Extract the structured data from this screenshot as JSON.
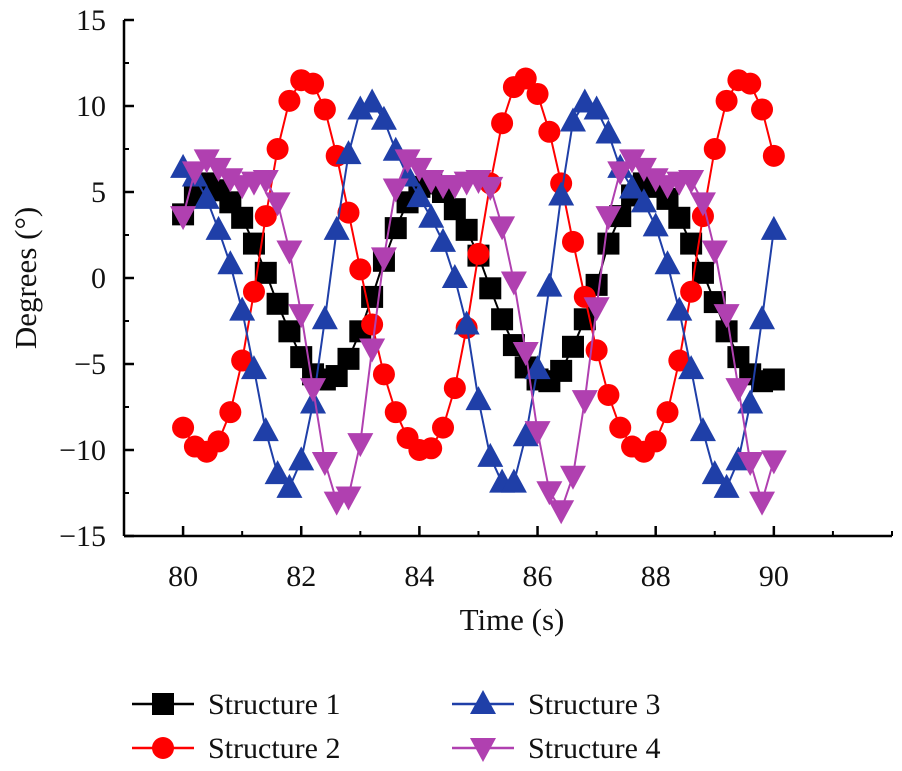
{
  "chart_data": {
    "type": "line",
    "title": "",
    "xlabel": "Time (s)",
    "ylabel": "Degrees (°)",
    "xlim": [
      79,
      92
    ],
    "ylim": [
      -15,
      15
    ],
    "xticks": [
      80,
      82,
      84,
      86,
      88,
      90
    ],
    "yticks": [
      15,
      10,
      5,
      0,
      -5,
      -10,
      -15
    ],
    "ytick_labels": [
      "15",
      "10",
      "5",
      "0",
      "−5",
      "−10",
      "−15"
    ],
    "xtick_labels": [
      "80",
      "82",
      "84",
      "86",
      "88",
      "90"
    ],
    "legend_position": "bottom",
    "series": [
      {
        "name": "Structure 1",
        "color": "#000000",
        "marker": "square",
        "x": [
          80.0,
          80.2,
          80.4,
          80.6,
          80.8,
          81.0,
          81.2,
          81.4,
          81.6,
          81.8,
          82.0,
          82.2,
          82.4,
          82.6,
          82.8,
          83.0,
          83.2,
          83.4,
          83.6,
          83.8,
          84.0,
          84.2,
          84.4,
          84.6,
          84.8,
          85.0,
          85.2,
          85.4,
          85.6,
          85.8,
          86.0,
          86.2,
          86.4,
          86.6,
          86.8,
          87.0,
          87.2,
          87.4,
          87.6,
          87.8,
          88.0,
          88.2,
          88.4,
          88.6,
          88.8,
          89.0,
          89.2,
          89.4,
          89.6,
          89.8,
          90.0
        ],
        "y": [
          3.7,
          4.8,
          5.5,
          5.1,
          4.4,
          3.5,
          2.0,
          0.3,
          -1.5,
          -3.1,
          -4.6,
          -5.6,
          -5.9,
          -5.7,
          -4.7,
          -3.1,
          -1.1,
          1.0,
          2.9,
          4.4,
          5.3,
          5.5,
          5.0,
          4.0,
          2.8,
          1.3,
          -0.6,
          -2.4,
          -3.9,
          -5.2,
          -5.9,
          -6.0,
          -5.4,
          -4.0,
          -2.4,
          -0.4,
          2.0,
          3.6,
          4.8,
          5.5,
          5.3,
          4.6,
          3.5,
          2.0,
          0.3,
          -1.4,
          -3.1,
          -4.6,
          -5.6,
          -6.0,
          -5.9
        ]
      },
      {
        "name": "Structure 2",
        "color": "#ff0000",
        "marker": "circle",
        "x": [
          80.0,
          80.2,
          80.4,
          80.6,
          80.8,
          81.0,
          81.2,
          81.4,
          81.6,
          81.8,
          82.0,
          82.2,
          82.4,
          82.6,
          82.8,
          83.0,
          83.2,
          83.4,
          83.6,
          83.8,
          84.0,
          84.2,
          84.4,
          84.6,
          84.8,
          85.0,
          85.2,
          85.4,
          85.6,
          85.8,
          86.0,
          86.2,
          86.4,
          86.6,
          86.8,
          87.0,
          87.2,
          87.4,
          87.6,
          87.8,
          88.0,
          88.2,
          88.4,
          88.6,
          88.8,
          89.0,
          89.2,
          89.4,
          89.6,
          89.8,
          90.0
        ],
        "y": [
          -8.7,
          -9.8,
          -10.1,
          -9.5,
          -7.8,
          -4.8,
          -0.8,
          3.6,
          7.5,
          10.3,
          11.5,
          11.3,
          9.8,
          7.1,
          3.8,
          0.5,
          -2.7,
          -5.6,
          -7.8,
          -9.3,
          -10.0,
          -9.9,
          -8.7,
          -6.4,
          -2.9,
          1.4,
          5.5,
          9.0,
          11.1,
          11.6,
          10.7,
          8.5,
          5.5,
          2.1,
          -1.1,
          -4.2,
          -6.8,
          -8.7,
          -9.8,
          -10.1,
          -9.5,
          -7.8,
          -4.8,
          -0.8,
          3.6,
          7.5,
          10.3,
          11.5,
          11.3,
          9.8,
          7.1
        ]
      },
      {
        "name": "Structure 3",
        "color": "#1f3fa8",
        "marker": "triangle-up",
        "x": [
          80.0,
          80.2,
          80.4,
          80.6,
          80.8,
          81.0,
          81.2,
          81.4,
          81.6,
          81.8,
          82.0,
          82.2,
          82.4,
          82.6,
          82.8,
          83.0,
          83.2,
          83.4,
          83.6,
          83.8,
          84.0,
          84.2,
          84.4,
          84.6,
          84.8,
          85.0,
          85.2,
          85.4,
          85.6,
          85.8,
          86.0,
          86.2,
          86.4,
          86.6,
          86.8,
          87.0,
          87.2,
          87.4,
          87.6,
          87.8,
          88.0,
          88.2,
          88.4,
          88.6,
          88.8,
          89.0,
          89.2,
          89.4,
          89.6,
          89.8,
          90.0
        ],
        "y": [
          6.4,
          5.9,
          4.6,
          2.8,
          0.8,
          -1.9,
          -5.3,
          -8.9,
          -11.4,
          -12.2,
          -10.6,
          -7.3,
          -2.4,
          2.8,
          7.2,
          9.8,
          10.2,
          9.2,
          7.4,
          5.9,
          4.7,
          3.5,
          2.1,
          0.0,
          -2.7,
          -7.1,
          -10.4,
          -11.9,
          -11.9,
          -9.2,
          -5.3,
          -0.5,
          4.8,
          9.1,
          10.2,
          9.8,
          8.4,
          6.4,
          5.2,
          4.4,
          3.0,
          0.8,
          -1.9,
          -5.3,
          -8.9,
          -11.4,
          -12.2,
          -10.6,
          -7.3,
          -2.4,
          2.8
        ]
      },
      {
        "name": "Structure 4",
        "color": "#b040b0",
        "marker": "triangle-down",
        "x": [
          80.0,
          80.2,
          80.4,
          80.6,
          80.8,
          81.0,
          81.2,
          81.4,
          81.6,
          81.8,
          82.0,
          82.2,
          82.4,
          82.6,
          82.8,
          83.0,
          83.2,
          83.4,
          83.6,
          83.8,
          84.0,
          84.2,
          84.4,
          84.6,
          84.8,
          85.0,
          85.2,
          85.4,
          85.6,
          85.8,
          86.0,
          86.2,
          86.4,
          86.6,
          86.8,
          87.0,
          87.2,
          87.4,
          87.6,
          87.8,
          88.0,
          88.2,
          88.4,
          88.6,
          88.8,
          89.0,
          89.2,
          89.4,
          89.6,
          89.8,
          90.0
        ],
        "y": [
          3.6,
          6.2,
          6.9,
          6.4,
          5.8,
          5.4,
          5.6,
          5.7,
          4.4,
          1.6,
          -2.1,
          -6.4,
          -10.7,
          -13.0,
          -12.7,
          -9.6,
          -4.1,
          1.2,
          5.2,
          6.9,
          6.4,
          5.7,
          5.4,
          5.4,
          5.6,
          5.7,
          5.3,
          3.0,
          -0.2,
          -4.3,
          -8.9,
          -12.4,
          -13.5,
          -11.5,
          -7.1,
          -1.7,
          3.6,
          6.2,
          6.9,
          6.4,
          5.8,
          5.4,
          5.6,
          5.7,
          4.4,
          1.6,
          -2.1,
          -6.4,
          -10.7,
          -13.0,
          -10.6
        ]
      }
    ]
  }
}
